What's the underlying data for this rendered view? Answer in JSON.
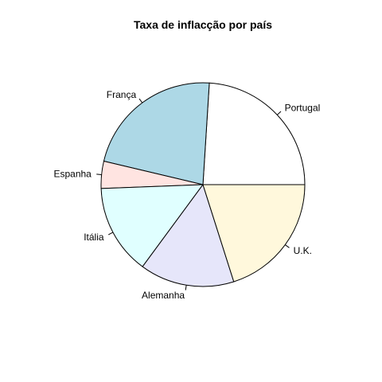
{
  "chart_data": {
    "type": "pie",
    "title": "Taxa de inflacção por país",
    "start_angle_deg": 0,
    "direction": "counterclockwise",
    "slices": [
      {
        "label": "Portugal",
        "value": 24.0,
        "color": "#ffffff"
      },
      {
        "label": "França",
        "value": 22.3,
        "color": "#add8e6"
      },
      {
        "label": "Espanha",
        "value": 4.3,
        "color": "#ffe4e1"
      },
      {
        "label": "Itália",
        "value": 14.3,
        "color": "#e0ffff"
      },
      {
        "label": "Alemanha",
        "value": 15.0,
        "color": "#e6e6fa"
      },
      {
        "label": "U.K.",
        "value": 20.1,
        "color": "#fff8dc"
      }
    ]
  }
}
